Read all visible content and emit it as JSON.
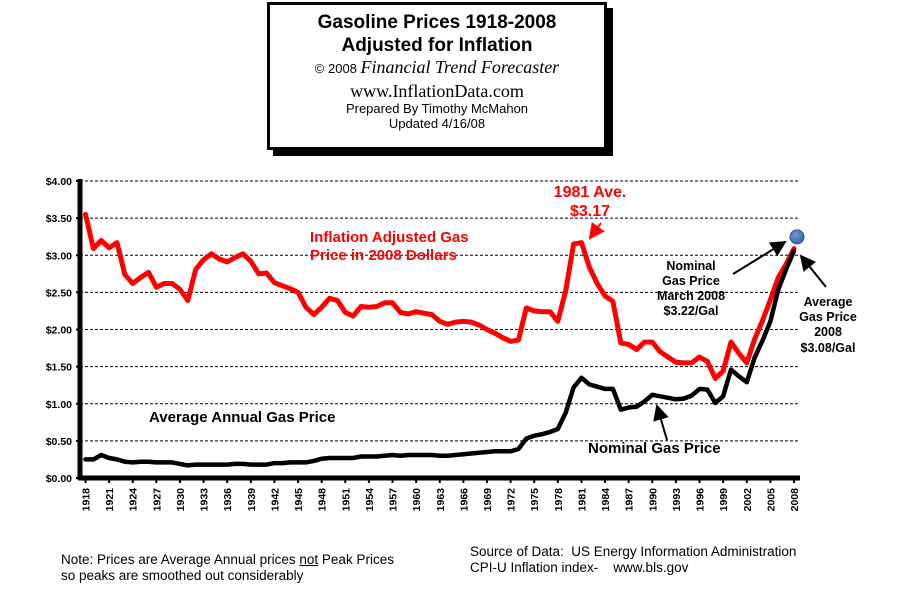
{
  "header": {
    "title_line1": "Gasoline Prices 1918-2008",
    "title_line2": "Adjusted for Inflation",
    "copyright": "© 2008",
    "publisher": "Financial Trend Forecaster",
    "website": "www.InflationData.com",
    "prepared_by": "Prepared By Timothy McMahon",
    "updated": "Updated 4/16/08"
  },
  "footer": {
    "note_part1": "Note: Prices are Average Annual prices ",
    "note_underlined": "not",
    "note_part2": " Peak Prices",
    "note_line2": "so peaks are smoothed out considerably",
    "source_line1": "Source of Data:  US Energy Information Administration",
    "source_line2": "CPI-U Inflation index-    www.bls.gov"
  },
  "chart_data": {
    "type": "line",
    "title": "Gasoline Prices 1918-2008 Adjusted for Inflation",
    "xlabel": "",
    "ylabel": "",
    "ylim": [
      0,
      4
    ],
    "xlim": [
      1918,
      2008
    ],
    "grid": "horizontal dashed",
    "y_ticks": [
      "$0.00",
      "$0.50",
      "$1.00",
      "$1.50",
      "$2.00",
      "$2.50",
      "$3.00",
      "$3.50",
      "$4.00"
    ],
    "x_ticks": [
      "1918",
      "1921",
      "1924",
      "1927",
      "1930",
      "1933",
      "1936",
      "1939",
      "1942",
      "1945",
      "1948",
      "1951",
      "1954",
      "1957",
      "1960",
      "1963",
      "1966",
      "1969",
      "1972",
      "1975",
      "1978",
      "1981",
      "1984",
      "1987",
      "1990",
      "1993",
      "1996",
      "1999",
      "2002",
      "2005",
      "2008"
    ],
    "x_start": 1918,
    "series": [
      {
        "name": "Inflation Adjusted Gas Price in 2008 Dollars",
        "color": "#ff0000",
        "values": [
          3.55,
          3.09,
          3.2,
          3.1,
          3.17,
          2.74,
          2.62,
          2.7,
          2.77,
          2.57,
          2.62,
          2.62,
          2.54,
          2.39,
          2.81,
          2.94,
          3.02,
          2.95,
          2.91,
          2.97,
          3.02,
          2.92,
          2.75,
          2.76,
          2.63,
          2.59,
          2.55,
          2.5,
          2.3,
          2.2,
          2.3,
          2.42,
          2.39,
          2.23,
          2.18,
          2.31,
          2.3,
          2.31,
          2.36,
          2.36,
          2.23,
          2.21,
          2.24,
          2.22,
          2.2,
          2.11,
          2.07,
          2.1,
          2.11,
          2.1,
          2.06,
          2.0,
          1.95,
          1.89,
          1.84,
          1.86,
          2.29,
          2.25,
          2.24,
          2.24,
          2.11,
          2.52,
          3.15,
          3.17,
          2.84,
          2.62,
          2.45,
          2.38,
          1.82,
          1.8,
          1.73,
          1.83,
          1.83,
          1.7,
          1.63,
          1.56,
          1.55,
          1.55,
          1.63,
          1.57,
          1.34,
          1.44,
          1.83,
          1.68,
          1.55,
          1.87,
          2.12,
          2.4,
          2.7,
          2.88,
          3.09
        ]
      },
      {
        "name": "Nominal Gas Price",
        "color": "#000000",
        "values": [
          0.25,
          0.25,
          0.31,
          0.27,
          0.25,
          0.22,
          0.21,
          0.22,
          0.22,
          0.21,
          0.21,
          0.21,
          0.19,
          0.17,
          0.18,
          0.18,
          0.18,
          0.18,
          0.18,
          0.19,
          0.19,
          0.18,
          0.18,
          0.18,
          0.2,
          0.2,
          0.21,
          0.21,
          0.21,
          0.23,
          0.26,
          0.27,
          0.27,
          0.27,
          0.27,
          0.29,
          0.29,
          0.29,
          0.3,
          0.31,
          0.3,
          0.31,
          0.31,
          0.31,
          0.31,
          0.3,
          0.3,
          0.31,
          0.32,
          0.33,
          0.34,
          0.35,
          0.36,
          0.36,
          0.36,
          0.39,
          0.53,
          0.57,
          0.59,
          0.62,
          0.66,
          0.88,
          1.22,
          1.35,
          1.26,
          1.23,
          1.2,
          1.2,
          0.92,
          0.95,
          0.96,
          1.03,
          1.12,
          1.1,
          1.08,
          1.06,
          1.07,
          1.11,
          1.2,
          1.19,
          1.01,
          1.1,
          1.46,
          1.37,
          1.29,
          1.62,
          1.85,
          2.11,
          2.54,
          2.81,
          3.06
        ]
      }
    ],
    "marker": {
      "label": "Nominal Gas Price March 2008",
      "x": 2008,
      "y": 3.22,
      "color": "#4f7fc0"
    },
    "annotations": {
      "peak_1981": [
        "1981 Ave.",
        "$3.17"
      ],
      "red_series_label": [
        "Inflation Adjusted Gas",
        "Price in 2008 Dollars"
      ],
      "avg_annual_label": "Average Annual Gas Price",
      "nominal_label": "Nominal Gas Price",
      "nominal_march": [
        "Nominal",
        "Gas Price",
        "March 2008",
        "$3.22/Gal"
      ],
      "avg_2008": [
        "Average",
        "Gas Price",
        "2008",
        "$3.08/Gal"
      ]
    }
  }
}
